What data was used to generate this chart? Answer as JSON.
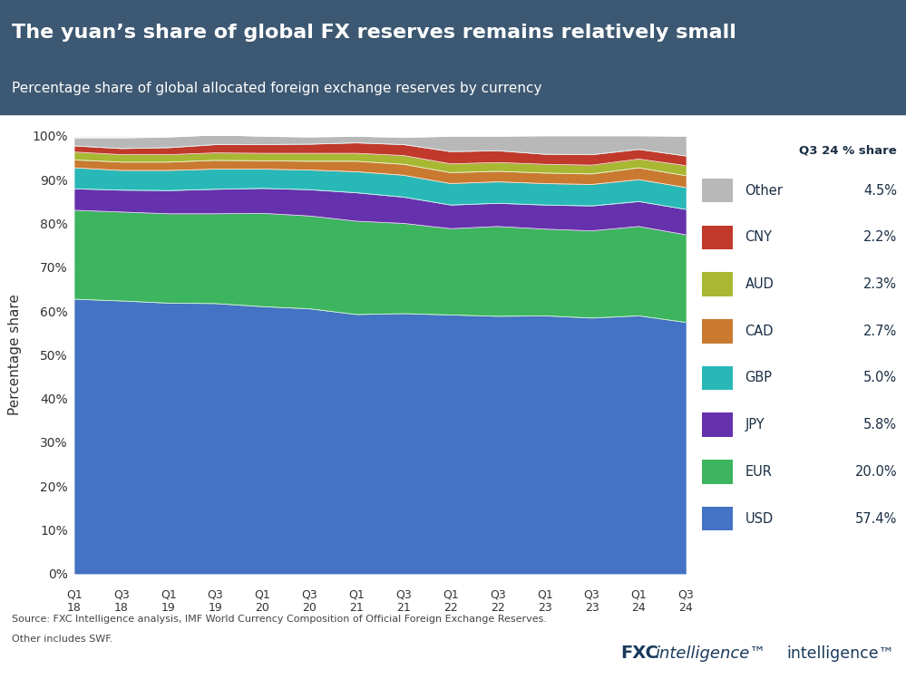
{
  "title": "The yuan’s share of global FX reserves remains relatively small",
  "subtitle": "Percentage share of global allocated foreign exchange reserves by currency",
  "ylabel": "Percentage share",
  "source_line1": "Source: FXC Intelligence analysis, IMF World Currency Composition of Official Foreign Exchange Reserves.",
  "source_line2": "Other includes SWF.",
  "header_bg": "#3d5872",
  "fig_bg": "#ffffff",
  "plot_bg": "#e8e8e8",
  "currencies": [
    "USD",
    "EUR",
    "JPY",
    "GBP",
    "CAD",
    "AUD",
    "CNY",
    "Other"
  ],
  "colors": [
    "#4472c4",
    "#3cb55e",
    "#6631ac",
    "#29b8b8",
    "#c97a30",
    "#a8b832",
    "#c0392b",
    "#b8b8b8"
  ],
  "q3_24_shares": [
    57.4,
    20.0,
    5.8,
    5.0,
    2.7,
    2.3,
    2.2,
    4.5
  ],
  "x_labels_line1": [
    "Q1",
    "Q3",
    "Q1",
    "Q3",
    "Q1",
    "Q3",
    "Q1",
    "Q3",
    "Q1",
    "Q3",
    "Q1",
    "Q3",
    "Q1",
    "Q3"
  ],
  "x_labels_line2": [
    "18",
    "18",
    "19",
    "19",
    "20",
    "20",
    "21",
    "21",
    "22",
    "22",
    "23",
    "23",
    "24",
    "24"
  ],
  "data": {
    "USD": [
      62.7,
      62.3,
      61.8,
      61.7,
      61.0,
      60.5,
      59.2,
      59.4,
      59.1,
      58.8,
      58.9,
      58.4,
      58.9,
      57.4
    ],
    "EUR": [
      20.3,
      20.3,
      20.4,
      20.5,
      21.3,
      21.2,
      21.3,
      20.6,
      19.7,
      20.5,
      19.8,
      19.9,
      20.4,
      20.0
    ],
    "JPY": [
      4.9,
      5.0,
      5.3,
      5.6,
      5.7,
      6.0,
      6.5,
      6.0,
      5.4,
      5.3,
      5.5,
      5.7,
      5.7,
      5.8
    ],
    "GBP": [
      4.8,
      4.5,
      4.6,
      4.6,
      4.4,
      4.5,
      4.8,
      5.0,
      4.9,
      4.9,
      4.9,
      4.9,
      5.0,
      5.0
    ],
    "CAD": [
      1.8,
      1.9,
      1.9,
      2.0,
      1.9,
      2.0,
      2.4,
      2.5,
      2.5,
      2.4,
      2.4,
      2.4,
      2.7,
      2.7
    ],
    "AUD": [
      1.8,
      1.7,
      1.7,
      1.7,
      1.7,
      1.8,
      1.8,
      2.0,
      2.0,
      2.0,
      2.0,
      2.0,
      2.0,
      2.3
    ],
    "CNY": [
      1.4,
      1.4,
      1.6,
      1.9,
      2.0,
      2.1,
      2.4,
      2.5,
      2.8,
      2.7,
      2.3,
      2.4,
      2.2,
      2.2
    ],
    "Other": [
      1.8,
      2.4,
      2.4,
      2.2,
      1.9,
      1.6,
      1.5,
      1.6,
      3.5,
      3.3,
      4.2,
      4.3,
      3.1,
      4.5
    ]
  },
  "legend_header": "Q3 24 % share"
}
